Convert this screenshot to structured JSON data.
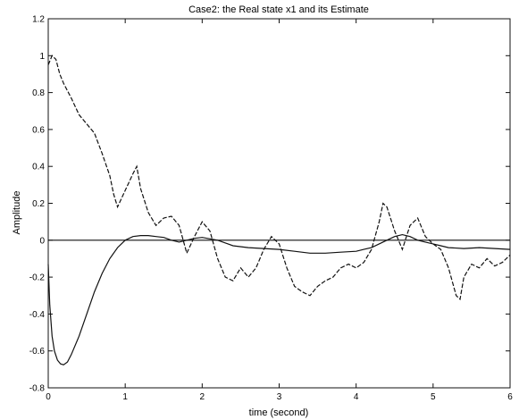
{
  "chart_data": {
    "type": "line",
    "title": "Case2: the Real state x1 and its Estimate",
    "xlabel": "time (second)",
    "ylabel": "Amplitude",
    "xlim": [
      0,
      6
    ],
    "ylim": [
      -0.8,
      1.2
    ],
    "xticks": [
      "0",
      "1",
      "2",
      "3",
      "4",
      "5",
      "6"
    ],
    "yticks": [
      "-0.8",
      "-0.6",
      "-0.4",
      "-0.2",
      "0",
      "0.2",
      "0.4",
      "0.6",
      "0.8",
      "1",
      "1.2"
    ],
    "grid": false,
    "series": [
      {
        "style": "dashed",
        "color": "#111111",
        "x": [
          0,
          0.05,
          0.1,
          0.15,
          0.2,
          0.3,
          0.4,
          0.5,
          0.6,
          0.7,
          0.8,
          0.85,
          0.9,
          1.0,
          1.1,
          1.15,
          1.2,
          1.3,
          1.4,
          1.5,
          1.6,
          1.7,
          1.8,
          1.9,
          2.0,
          2.1,
          2.2,
          2.3,
          2.4,
          2.5,
          2.6,
          2.7,
          2.8,
          2.9,
          3.0,
          3.1,
          3.2,
          3.3,
          3.4,
          3.5,
          3.6,
          3.7,
          3.8,
          3.9,
          4.0,
          4.1,
          4.2,
          4.3,
          4.35,
          4.4,
          4.5,
          4.6,
          4.7,
          4.8,
          4.9,
          5.0,
          5.1,
          5.2,
          5.3,
          5.35,
          5.4,
          5.5,
          5.6,
          5.7,
          5.8,
          5.9,
          6.0
        ],
        "y": [
          0.95,
          1.0,
          0.98,
          0.9,
          0.85,
          0.77,
          0.68,
          0.63,
          0.58,
          0.47,
          0.35,
          0.25,
          0.18,
          0.27,
          0.36,
          0.4,
          0.28,
          0.15,
          0.08,
          0.12,
          0.13,
          0.08,
          -0.07,
          0.02,
          0.1,
          0.05,
          -0.1,
          -0.2,
          -0.22,
          -0.15,
          -0.2,
          -0.15,
          -0.05,
          0.02,
          -0.02,
          -0.15,
          -0.25,
          -0.28,
          -0.3,
          -0.25,
          -0.22,
          -0.2,
          -0.15,
          -0.13,
          -0.15,
          -0.12,
          -0.05,
          0.1,
          0.2,
          0.18,
          0.05,
          -0.05,
          0.08,
          0.12,
          0.02,
          -0.02,
          -0.05,
          -0.15,
          -0.3,
          -0.32,
          -0.2,
          -0.13,
          -0.15,
          -0.1,
          -0.14,
          -0.12,
          -0.08
        ]
      },
      {
        "style": "solid",
        "color": "#111111",
        "x": [
          0,
          0.02,
          0.05,
          0.08,
          0.12,
          0.16,
          0.2,
          0.25,
          0.3,
          0.4,
          0.5,
          0.6,
          0.7,
          0.8,
          0.9,
          1.0,
          1.1,
          1.2,
          1.3,
          1.4,
          1.5,
          1.6,
          1.7,
          1.8,
          1.9,
          2.0,
          2.2,
          2.4,
          2.6,
          2.8,
          3.0,
          3.2,
          3.4,
          3.6,
          3.8,
          4.0,
          4.1,
          4.2,
          4.3,
          4.4,
          4.5,
          4.6,
          4.7,
          4.8,
          4.9,
          5.0,
          5.1,
          5.2,
          5.4,
          5.6,
          5.8,
          6.0
        ],
        "y": [
          -0.13,
          -0.35,
          -0.52,
          -0.6,
          -0.65,
          -0.67,
          -0.675,
          -0.66,
          -0.62,
          -0.52,
          -0.4,
          -0.28,
          -0.18,
          -0.1,
          -0.04,
          0.0,
          0.02,
          0.025,
          0.025,
          0.02,
          0.015,
          0.0,
          -0.01,
          0.0,
          0.01,
          0.015,
          0.0,
          -0.03,
          -0.04,
          -0.045,
          -0.05,
          -0.06,
          -0.07,
          -0.07,
          -0.065,
          -0.06,
          -0.05,
          -0.04,
          -0.02,
          0.0,
          0.02,
          0.03,
          0.02,
          0.0,
          -0.01,
          -0.02,
          -0.03,
          -0.04,
          -0.045,
          -0.04,
          -0.045,
          -0.05
        ]
      },
      {
        "style": "solid",
        "color": "#111111",
        "x": [
          0,
          6
        ],
        "y": [
          0,
          0
        ]
      }
    ]
  }
}
